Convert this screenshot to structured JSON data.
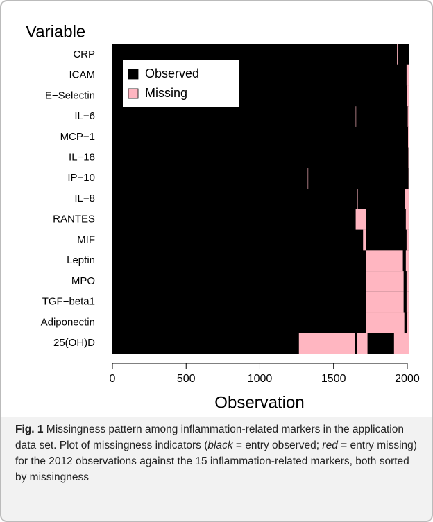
{
  "chart_data": {
    "type": "missingness",
    "ylabel": "Variable",
    "xlabel": "Observation",
    "categories": [
      "CRP",
      "ICAM",
      "E−Selectin",
      "IL−6",
      "MCP−1",
      "IL−18",
      "IP−10",
      "IL−8",
      "RANTES",
      "MIF",
      "Leptin",
      "MPO",
      "TGF−beta1",
      "Adiponectin",
      "25(OH)D"
    ],
    "xlim": [
      0,
      2012
    ],
    "xticks": [
      0,
      500,
      1000,
      1500,
      2000
    ],
    "legend": "top-left",
    "series": [
      {
        "name": "Observed",
        "color": "#000000"
      },
      {
        "name": "Missing",
        "color": "#ffb6c1",
        "intervals": [
          [
            [
              1365,
              1368
            ],
            [
              1930,
              1934
            ]
          ],
          [
            [
              1995,
              2012
            ]
          ],
          [
            [
              2000,
              2012
            ]
          ],
          [
            [
              1650,
              1653
            ],
            [
              2003,
              2012
            ]
          ],
          [
            [
              2005,
              2012
            ]
          ],
          [
            [
              2007,
              2012
            ]
          ],
          [
            [
              1325,
              1328
            ],
            [
              2008,
              2012
            ]
          ],
          [
            [
              1660,
              1664
            ],
            [
              1985,
              2012
            ]
          ],
          [
            [
              1650,
              1720
            ],
            [
              1990,
              2012
            ]
          ],
          [
            [
              1700,
              1720
            ],
            [
              1995,
              2012
            ]
          ],
          [
            [
              1720,
              1970
            ],
            [
              1990,
              2012
            ]
          ],
          [
            [
              1720,
              1975
            ],
            [
              1995,
              2012
            ]
          ],
          [
            [
              1720,
              1975
            ],
            [
              1995,
              2012
            ]
          ],
          [
            [
              1720,
              1980
            ],
            [
              2000,
              2012
            ]
          ],
          [
            [
              1265,
              1645
            ],
            [
              1660,
              1730
            ],
            [
              1910,
              2012
            ]
          ]
        ]
      }
    ]
  },
  "caption": {
    "label": "Fig. 1",
    "parts": [
      "Missingness pattern among inflammation-related markers in the application data set. Plot of missingness indicators (",
      "black",
      " = entry observed; ",
      "red",
      " = entry missing) for the 2012 observations against the 15 inflammation-related markers, both sorted by missingness"
    ]
  }
}
